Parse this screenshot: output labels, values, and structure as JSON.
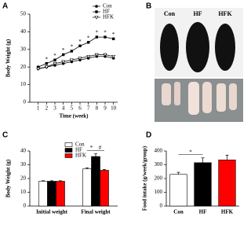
{
  "panel_labels": [
    "A",
    "B",
    "C",
    "D"
  ],
  "panel_b": {
    "labels": [
      "Con",
      "HF",
      "HFK"
    ]
  },
  "chart_data": [
    {
      "type": "line",
      "x": [
        1,
        2,
        3,
        4,
        5,
        6,
        7,
        8,
        9,
        10
      ],
      "xlim": [
        0,
        10.5
      ],
      "xticks": [
        1,
        2,
        3,
        4,
        5,
        6,
        7,
        8,
        9,
        10
      ],
      "ylim": [
        0,
        50
      ],
      "yticks": [
        0,
        10,
        20,
        30,
        40,
        50
      ],
      "xlabel": "Time (week)",
      "ylabel": "Body Weight (g)",
      "significance_label": "*",
      "series": [
        {
          "name": "Con",
          "color": "#000000",
          "marker": "circle",
          "values": [
            19,
            20,
            21,
            22,
            23,
            24,
            25,
            26,
            26,
            25
          ]
        },
        {
          "name": "HF",
          "color": "#000000",
          "marker": "square",
          "values": [
            20,
            22,
            24,
            27,
            29,
            32,
            34,
            37,
            37,
            36
          ]
        },
        {
          "name": "HFK",
          "color": "#000000",
          "marker": "triangle",
          "values": [
            19,
            20,
            22,
            23,
            24,
            25,
            26,
            27,
            27,
            26
          ]
        }
      ]
    },
    {
      "type": "grouped_bar",
      "categories": [
        "Initial weight",
        "Final weight"
      ],
      "ylim": [
        0,
        40
      ],
      "yticks": [
        0,
        10,
        20,
        30,
        40
      ],
      "ylabel": "Body Weight (g)",
      "annotations": [
        "*",
        "#"
      ],
      "series": [
        {
          "name": "Con",
          "color": "#ffffff",
          "values": [
            18,
            27
          ],
          "errors": [
            0.4,
            0.8
          ]
        },
        {
          "name": "HF",
          "color": "#000000",
          "values": [
            18,
            36
          ],
          "errors": [
            0.4,
            2
          ]
        },
        {
          "name": "HFK",
          "color": "#ff0000",
          "values": [
            18,
            26
          ],
          "errors": [
            0.4,
            0.6
          ]
        }
      ]
    },
    {
      "type": "bar",
      "categories": [
        "Con",
        "HF",
        "HFK"
      ],
      "values": [
        230,
        315,
        335
      ],
      "errors": [
        15,
        35,
        35
      ],
      "colors": [
        "#ffffff",
        "#000000",
        "#ff0000"
      ],
      "ylim": [
        0,
        400
      ],
      "yticks": [
        0,
        100,
        200,
        300,
        400
      ],
      "ylabel": "Food intake (g/week/group)",
      "annotation": "*"
    }
  ]
}
